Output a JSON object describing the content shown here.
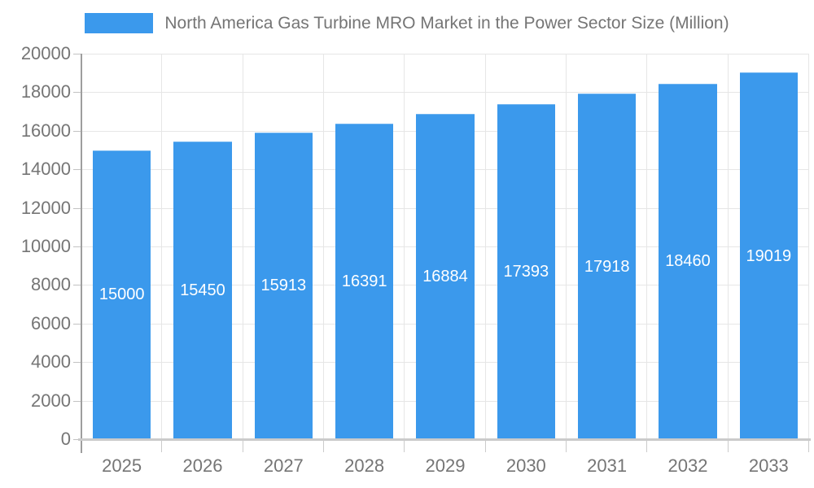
{
  "chart_data": {
    "type": "bar",
    "title": "North America Gas Turbine MRO Market in the Power Sector Size (Million)",
    "categories": [
      "2025",
      "2026",
      "2027",
      "2028",
      "2029",
      "2030",
      "2031",
      "2032",
      "2033"
    ],
    "values": [
      15000,
      15450,
      15913,
      16391,
      16884,
      17393,
      17918,
      18460,
      19019
    ],
    "value_labels": [
      "15000",
      "15450",
      "15913",
      "16391",
      "16884",
      "17393",
      "17918",
      "18460",
      "19019"
    ],
    "xlabel": "",
    "ylabel": "",
    "ylim": [
      0,
      20000
    ],
    "yticks": [
      0,
      2000,
      4000,
      6000,
      8000,
      10000,
      12000,
      14000,
      16000,
      18000,
      20000
    ],
    "grid": true,
    "legend_position": "top-center",
    "value_label_position": "inside-center"
  },
  "colors": {
    "bar": "#3B99EC",
    "grid": "#E6E6E6",
    "axis_text": "#757575",
    "value_label": "#FFFFFF",
    "y_axis_line": "#9E9E9E",
    "x_axis_line": "#CBCBCB"
  }
}
